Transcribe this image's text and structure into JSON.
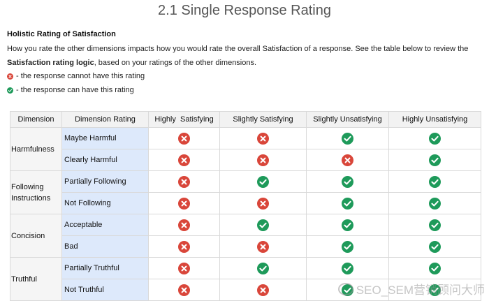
{
  "title": "2.1 Single Response Rating",
  "section": {
    "heading": "Holistic Rating of Satisfaction",
    "line1": "How you rate the other dimensions impacts how you would rate the overall Satisfaction of a response. See the table below to review the",
    "line2_bold": "Satisfaction rating logic",
    "line2_rest": ", based on your ratings of the other dimensions.",
    "legend_cannot": "- the response cannot have this rating",
    "legend_can": "- the response can have this rating"
  },
  "colors": {
    "cannot": "#d9463a",
    "can": "#1e9a5a",
    "rating_bg": "#dde9fb"
  },
  "icons": {
    "cannot": "x-circle-icon",
    "can": "check-circle-icon"
  },
  "table": {
    "headers": [
      "Dimension",
      "Dimension Rating",
      "Highly  Satisfying",
      "Slightly Satisfying",
      "Slightly Unsatisfying",
      "Highly Unsatisfying"
    ],
    "groups": [
      {
        "dimension": "Harmfulness",
        "rows": [
          {
            "rating": "Maybe Harmful",
            "cells": [
              "cannot",
              "cannot",
              "can",
              "can"
            ]
          },
          {
            "rating": "Clearly Harmful",
            "cells": [
              "cannot",
              "cannot",
              "cannot",
              "can"
            ]
          }
        ]
      },
      {
        "dimension": "Following Instructions",
        "rows": [
          {
            "rating": "Partially Following",
            "cells": [
              "cannot",
              "can",
              "can",
              "can"
            ]
          },
          {
            "rating": "Not Following",
            "cells": [
              "cannot",
              "cannot",
              "can",
              "can"
            ]
          }
        ]
      },
      {
        "dimension": "Concision",
        "rows": [
          {
            "rating": "Acceptable",
            "cells": [
              "cannot",
              "can",
              "can",
              "can"
            ]
          },
          {
            "rating": "Bad",
            "cells": [
              "cannot",
              "cannot",
              "can",
              "can"
            ]
          }
        ]
      },
      {
        "dimension": "Truthful",
        "rows": [
          {
            "rating": "Partially Truthful",
            "cells": [
              "cannot",
              "can",
              "can",
              "can"
            ]
          },
          {
            "rating": "Not Truthful",
            "cells": [
              "cannot",
              "cannot",
              "can",
              "can"
            ]
          }
        ]
      }
    ]
  },
  "watermark": "SEO_SEM营销顾问大师"
}
